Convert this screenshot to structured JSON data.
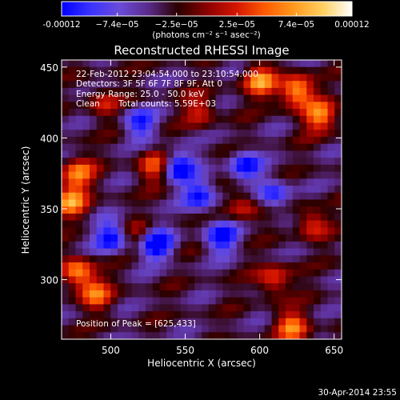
{
  "chart_data": {
    "type": "heatmap",
    "title": "Reconstructed RHESSI Image",
    "xlabel": "Heliocentric X (arcsec)",
    "ylabel": "Heliocentric Y (arcsec)",
    "xlim": [
      467,
      655
    ],
    "ylim": [
      258,
      455
    ],
    "x_ticks": [
      "500",
      "550",
      "600",
      "650"
    ],
    "x_tick_values": [
      500,
      550,
      600,
      650
    ],
    "y_ticks": [
      "300",
      "350",
      "400",
      "450"
    ],
    "y_tick_values": [
      300,
      350,
      400,
      450
    ],
    "colorbar": {
      "ticks": [
        "-0.00012",
        "−7.4e−05",
        "−2.5e−05",
        "2.5e−05",
        "7.4e−05",
        "0.00012"
      ],
      "tick_values": [
        -0.00012,
        -7.4e-05,
        -2.5e-05,
        2.5e-05,
        7.4e-05,
        0.00012
      ],
      "range": [
        -0.00012,
        0.00012
      ],
      "unit_label": "(photons cm⁻² s⁻¹ asec⁻²)",
      "colors": [
        "#0000ff",
        "#3a33ff",
        "#6a4cd8",
        "#5a2a8a",
        "#2a0000",
        "#8a0000",
        "#d21400",
        "#ff5a00",
        "#ff9a1e",
        "#ffd060",
        "#ffffff"
      ]
    },
    "annotations": {
      "time": "22-Feb-2012 23:04:54.000 to 23:10:54.000",
      "detectors": "Detectors: 3F 5F 6F 7F 8F 9F, Att 0",
      "energy": "Energy Range: 25.0 - 50.0 keV",
      "method": "Clean",
      "total_counts": "Total counts: 5.59E+03",
      "peak": "Position of Peak = [625,433]"
    },
    "peak_position": [
      625,
      433
    ],
    "bright_regions": [
      {
        "x": 625,
        "y": 433,
        "value": 0.00012
      },
      {
        "x": 600,
        "y": 440,
        "value": 0.0001
      },
      {
        "x": 640,
        "y": 415,
        "value": 9.5e-05
      },
      {
        "x": 473,
        "y": 355,
        "value": 0.0001
      },
      {
        "x": 478,
        "y": 375,
        "value": 9e-05
      },
      {
        "x": 530,
        "y": 380,
        "value": 8e-05
      },
      {
        "x": 478,
        "y": 305,
        "value": 0.0001
      },
      {
        "x": 490,
        "y": 290,
        "value": 8e-05
      },
      {
        "x": 610,
        "y": 300,
        "value": 7.5e-05
      },
      {
        "x": 622,
        "y": 267,
        "value": 9e-05
      },
      {
        "x": 588,
        "y": 352,
        "value": 6e-05
      },
      {
        "x": 520,
        "y": 330,
        "value": 5e-05
      },
      {
        "x": 635,
        "y": 340,
        "value": 6.5e-05
      },
      {
        "x": 560,
        "y": 420,
        "value": 6e-05
      },
      {
        "x": 495,
        "y": 425,
        "value": 5e-05
      }
    ],
    "dark_regions": [
      {
        "x": 530,
        "y": 325,
        "value": -0.00012
      },
      {
        "x": 545,
        "y": 380,
        "value": -0.0001
      },
      {
        "x": 575,
        "y": 330,
        "value": -9e-05
      },
      {
        "x": 500,
        "y": 330,
        "value": -9e-05
      },
      {
        "x": 560,
        "y": 360,
        "value": -8.5e-05
      },
      {
        "x": 590,
        "y": 380,
        "value": -8e-05
      },
      {
        "x": 520,
        "y": 410,
        "value": -7e-05
      },
      {
        "x": 610,
        "y": 360,
        "value": -7e-05
      }
    ]
  },
  "footer": {
    "date": "30-Apr-2014 23:55"
  }
}
